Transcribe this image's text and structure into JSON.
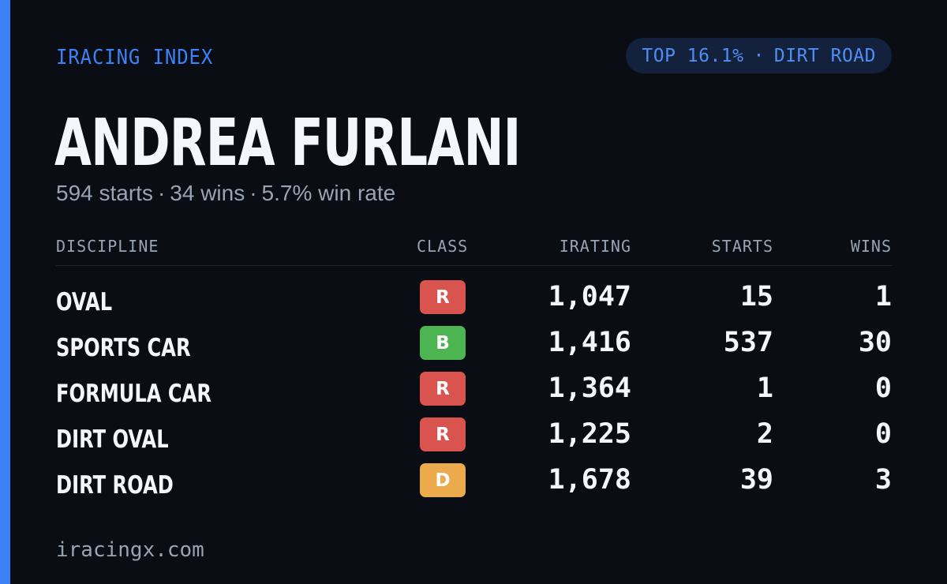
{
  "brand": "IRACING INDEX",
  "rank_pill": {
    "percentile": "TOP 16.1%",
    "separator": "·",
    "discipline": "DIRT ROAD"
  },
  "driver": {
    "name": "ANDREA FURLANI",
    "starts": "594 starts",
    "wins": "34 wins",
    "win_rate": "5.7% win rate",
    "separator": "·"
  },
  "table": {
    "headers": {
      "discipline": "DISCIPLINE",
      "class": "CLASS",
      "irating": "IRATING",
      "starts": "STARTS",
      "wins": "WINS"
    },
    "rows": [
      {
        "discipline": "OVAL",
        "class": "R",
        "class_color": "#d9534f",
        "irating": "1,047",
        "starts": "15",
        "wins": "1"
      },
      {
        "discipline": "SPORTS CAR",
        "class": "B",
        "class_color": "#4cb552",
        "irating": "1,416",
        "starts": "537",
        "wins": "30"
      },
      {
        "discipline": "FORMULA CAR",
        "class": "R",
        "class_color": "#d9534f",
        "irating": "1,364",
        "starts": "1",
        "wins": "0"
      },
      {
        "discipline": "DIRT OVAL",
        "class": "R",
        "class_color": "#d9534f",
        "irating": "1,225",
        "starts": "2",
        "wins": "0"
      },
      {
        "discipline": "DIRT ROAD",
        "class": "D",
        "class_color": "#ebab4c",
        "irating": "1,678",
        "starts": "39",
        "wins": "3"
      }
    ]
  },
  "footer": "iracingx.com",
  "colors": {
    "background": "#0a0d14",
    "accent": "#3b82f6",
    "pill_background": "#13213d",
    "muted_text": "#9aa3b2",
    "primary_text": "#f4f6fb"
  }
}
